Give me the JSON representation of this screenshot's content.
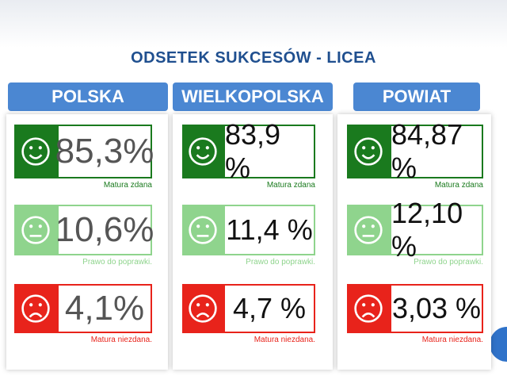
{
  "title": "ODSETEK SUKCESÓW - LICEA",
  "columns": [
    {
      "header": "POLSKA",
      "rows": [
        {
          "value": "85,3%",
          "caption": "Matura zdana"
        },
        {
          "value": "10,6%",
          "caption": "Prawo do poprawki."
        },
        {
          "value": "4,1%",
          "caption": "Matura niezdana."
        }
      ]
    },
    {
      "header": "WIELKOPOLSKA",
      "rows": [
        {
          "value": "83,9 %",
          "caption": "Matura zdana"
        },
        {
          "value": "11,4 %",
          "caption": "Prawo do poprawki."
        },
        {
          "value": "4,7 %",
          "caption": "Matura niezdana."
        }
      ]
    },
    {
      "header": "POWIAT",
      "rows": [
        {
          "value": "84,87 %",
          "caption": "Matura zdana"
        },
        {
          "value": "12,10 %",
          "caption": "Prawo do poprawki."
        },
        {
          "value": "3,03 %",
          "caption": "Matura niezdana."
        }
      ]
    }
  ]
}
